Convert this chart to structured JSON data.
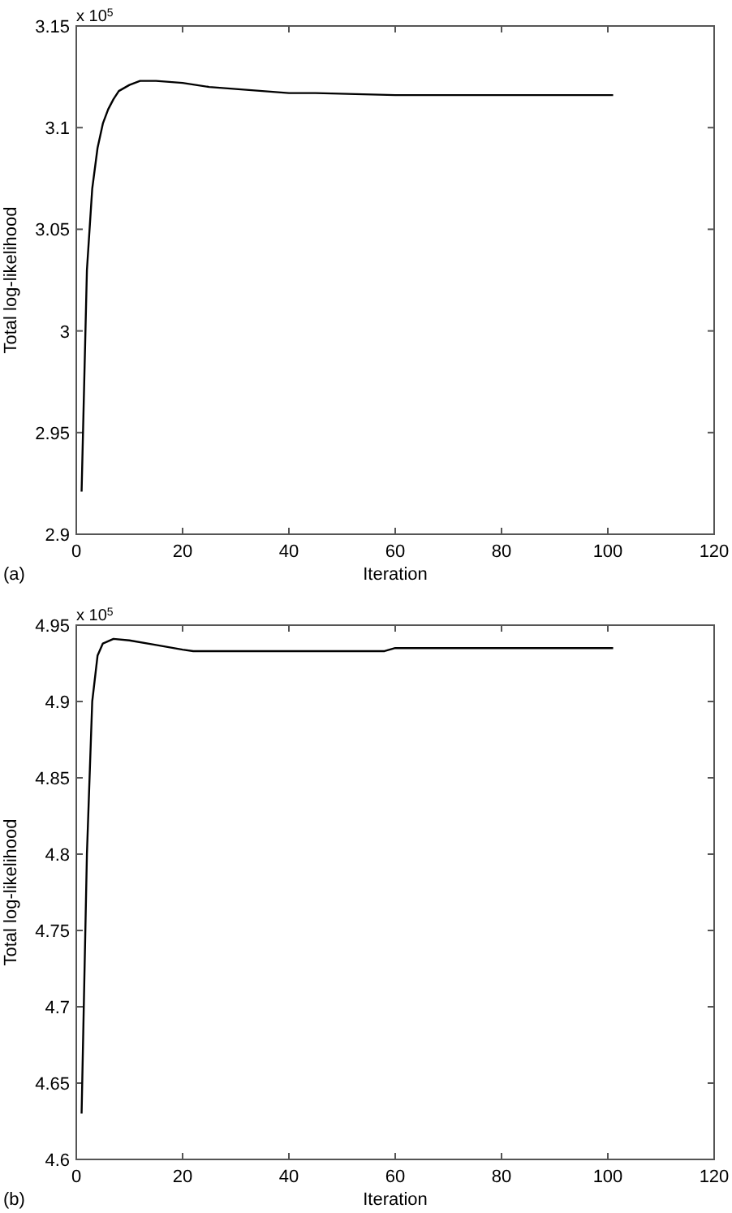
{
  "chart_data": [
    {
      "type": "line",
      "xlabel": "Iteration",
      "ylabel": "Total log-likelihood",
      "annotations": [
        "x 10$^{5}$",
        "(a)"
      ],
      "xlim": [
        0,
        120
      ],
      "xticks": [
        0,
        20,
        40,
        60,
        80,
        100,
        120
      ],
      "ylim": [
        2.9,
        3.15
      ],
      "yticks": [
        2.9,
        2.95,
        3,
        3.05,
        3.1,
        3.15
      ],
      "grid": false,
      "series": [
        {
          "color": "#000000",
          "x": [
            1,
            2,
            3,
            4,
            5,
            6,
            7,
            8,
            10,
            12,
            15,
            20,
            25,
            30,
            35,
            40,
            45,
            60,
            101
          ],
          "values": [
            2.921,
            3.03,
            3.07,
            3.09,
            3.102,
            3.109,
            3.114,
            3.118,
            3.121,
            3.123,
            3.123,
            3.122,
            3.12,
            3.119,
            3.118,
            3.117,
            3.117,
            3.116,
            3.116
          ]
        }
      ]
    },
    {
      "type": "line",
      "xlabel": "Iteration",
      "ylabel": "Total log-likelihood",
      "annotations": [
        "x 10$^{5}$",
        "(b)"
      ],
      "xlim": [
        0,
        120
      ],
      "xticks": [
        0,
        20,
        40,
        60,
        80,
        100,
        120
      ],
      "ylim": [
        4.6,
        4.95
      ],
      "yticks": [
        4.6,
        4.65,
        4.7,
        4.75,
        4.8,
        4.85,
        4.9,
        4.95
      ],
      "grid": false,
      "series": [
        {
          "color": "#000000",
          "x": [
            1,
            2,
            3,
            4,
            5,
            7,
            10,
            15,
            20,
            22,
            58,
            60,
            101
          ],
          "values": [
            4.63,
            4.8,
            4.9,
            4.93,
            4.938,
            4.941,
            4.94,
            4.937,
            4.934,
            4.933,
            4.933,
            4.935,
            4.935
          ]
        }
      ]
    }
  ]
}
